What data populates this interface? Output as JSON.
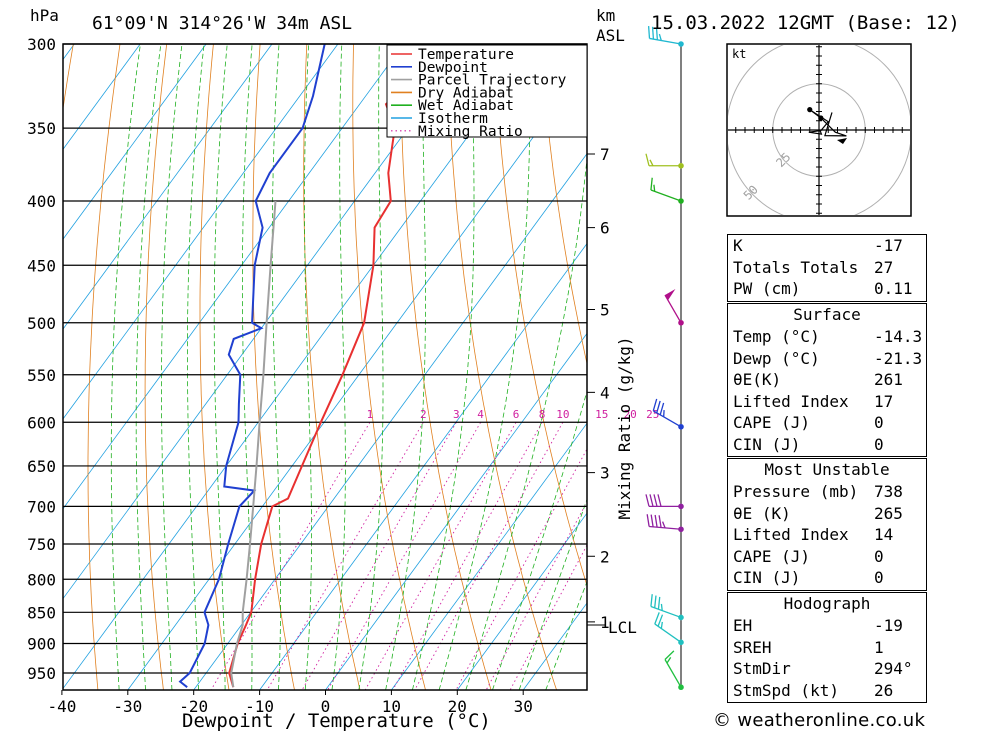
{
  "header": {
    "hpa_unit": "hPa",
    "location": "61°09'N  314°26'W  34m  ASL",
    "km_unit": "km",
    "asl_unit": "ASL",
    "date": "15.03.2022  12GMT  (Base: 12)"
  },
  "footer": "© weatheronline.co.uk",
  "hodograph": {
    "unit": "kt",
    "rings": [
      "25",
      "50",
      "75"
    ]
  },
  "stats": {
    "basic": [
      {
        "label": "K",
        "value": "-17"
      },
      {
        "label": "Totals Totals",
        "value": "27"
      },
      {
        "label": "PW (cm)",
        "value": "0.11"
      }
    ],
    "surface": {
      "title": "Surface",
      "rows": [
        {
          "label": "Temp (°C)",
          "value": "-14.3"
        },
        {
          "label": "Dewp (°C)",
          "value": "-21.3"
        },
        {
          "label": "θE(K)",
          "value": "261"
        },
        {
          "label": "Lifted Index",
          "value": "17"
        },
        {
          "label": "CAPE (J)",
          "value": "0"
        },
        {
          "label": "CIN (J)",
          "value": "0"
        }
      ]
    },
    "most_unstable": {
      "title": "Most Unstable",
      "rows": [
        {
          "label": "Pressure (mb)",
          "value": "738"
        },
        {
          "label": "θE (K)",
          "value": "265"
        },
        {
          "label": "Lifted Index",
          "value": "14"
        },
        {
          "label": "CAPE (J)",
          "value": "0"
        },
        {
          "label": "CIN (J)",
          "value": "0"
        }
      ]
    },
    "hodograph": {
      "title": "Hodograph",
      "rows": [
        {
          "label": "EH",
          "value": "-19"
        },
        {
          "label": "SREH",
          "value": "1"
        },
        {
          "label": "StmDir",
          "value": "294°"
        },
        {
          "label": "StmSpd (kt)",
          "value": "26"
        }
      ]
    }
  },
  "colors": {
    "temperature": "#e83030",
    "dewpoint": "#2040d0",
    "parcel": "#a0a0a0",
    "dry_adiabat": "#e08020",
    "wet_adiabat": "#20b020",
    "isotherm": "#20a0e0",
    "mixing_ratio": "#d020a0"
  },
  "chart_data": {
    "type": "line",
    "xlabel": "Dewpoint / Temperature (°C)",
    "ylabel": "hPa",
    "right_label": "Mixing Ratio (g/kg)",
    "xlim": [
      -40,
      40
    ],
    "ylim": [
      980,
      300
    ],
    "x_ticks": [
      "-40",
      "-30",
      "-20",
      "-10",
      "0",
      "10",
      "20",
      "30"
    ],
    "pressure_ticks": [
      300,
      350,
      400,
      450,
      500,
      550,
      600,
      650,
      700,
      750,
      800,
      850,
      900,
      950
    ],
    "km_ticks": [
      {
        "label": "7",
        "p": 367
      },
      {
        "label": "6",
        "p": 420
      },
      {
        "label": "5",
        "p": 488
      },
      {
        "label": "4",
        "p": 568
      },
      {
        "label": "3",
        "p": 658
      },
      {
        "label": "2",
        "p": 767
      },
      {
        "label": "1",
        "p": 865
      }
    ],
    "lcl_label": "LCL",
    "lcl_p": 870,
    "mixing_ratio_labels": [
      "1",
      "2",
      "3",
      "4",
      "6",
      "8",
      "10",
      "15",
      "20",
      "25"
    ],
    "mixing_ratio_values": [
      1,
      2,
      3,
      4,
      6,
      8,
      10,
      15,
      20,
      25
    ],
    "legend": [
      {
        "name": "Temperature",
        "key": "temperature",
        "style": "solid"
      },
      {
        "name": "Dewpoint",
        "key": "dewpoint",
        "style": "solid"
      },
      {
        "name": "Parcel Trajectory",
        "key": "parcel",
        "style": "solid"
      },
      {
        "name": "Dry Adiabat",
        "key": "dry_adiabat",
        "style": "solid"
      },
      {
        "name": "Wet Adiabat",
        "key": "wet_adiabat",
        "style": "solid"
      },
      {
        "name": "Isotherm",
        "key": "isotherm",
        "style": "solid"
      },
      {
        "name": "Mixing Ratio",
        "key": "mixing_ratio",
        "style": "dotted"
      }
    ],
    "series": [
      {
        "name": "Temperature",
        "points": [
          [
            975,
            -14.3
          ],
          [
            950,
            -16.5
          ],
          [
            900,
            -18.5
          ],
          [
            870,
            -19.3
          ],
          [
            850,
            -19.9
          ],
          [
            800,
            -23.0
          ],
          [
            750,
            -26.0
          ],
          [
            700,
            -28.5
          ],
          [
            690,
            -27.0
          ],
          [
            650,
            -28.5
          ],
          [
            600,
            -30.5
          ],
          [
            550,
            -32.5
          ],
          [
            500,
            -35.0
          ],
          [
            450,
            -40.0
          ],
          [
            420,
            -44.0
          ],
          [
            400,
            -44.5
          ],
          [
            380,
            -48.0
          ],
          [
            350,
            -52.0
          ],
          [
            335,
            -56.0
          ],
          [
            300,
            -53.0
          ]
        ]
      },
      {
        "name": "Dewpoint",
        "points": [
          [
            975,
            -21.3
          ],
          [
            965,
            -23.0
          ],
          [
            950,
            -22.5
          ],
          [
            900,
            -23.5
          ],
          [
            870,
            -25.0
          ],
          [
            850,
            -27.0
          ],
          [
            800,
            -28.5
          ],
          [
            750,
            -31.0
          ],
          [
            700,
            -33.5
          ],
          [
            680,
            -33.0
          ],
          [
            675,
            -38.0
          ],
          [
            650,
            -40.0
          ],
          [
            600,
            -43.0
          ],
          [
            580,
            -45.0
          ],
          [
            550,
            -48.0
          ],
          [
            530,
            -52.0
          ],
          [
            515,
            -53.0
          ],
          [
            505,
            -50.0
          ],
          [
            500,
            -52.0
          ],
          [
            450,
            -58.0
          ],
          [
            420,
            -61.0
          ],
          [
            400,
            -65.0
          ],
          [
            380,
            -66.0
          ],
          [
            350,
            -66.0
          ],
          [
            330,
            -68.0
          ],
          [
            300,
            -72.0
          ]
        ]
      },
      {
        "name": "Parcel Trajectory",
        "points": [
          [
            975,
            -14.3
          ],
          [
            950,
            -16.2
          ],
          [
            900,
            -18.6
          ],
          [
            870,
            -19.8
          ],
          [
            850,
            -21.2
          ],
          [
            800,
            -24.3
          ],
          [
            750,
            -27.7
          ],
          [
            700,
            -31.4
          ],
          [
            650,
            -35.4
          ],
          [
            600,
            -39.8
          ],
          [
            550,
            -44.5
          ],
          [
            500,
            -49.8
          ],
          [
            450,
            -55.6
          ],
          [
            400,
            -62.0
          ]
        ]
      }
    ],
    "wind_barbs": [
      {
        "p": 300,
        "dir": 280,
        "speed": 35,
        "color": "#20b8d0"
      },
      {
        "p": 375,
        "dir": 270,
        "speed": 15,
        "color": "#a0c020"
      },
      {
        "p": 400,
        "dir": 290,
        "speed": 15,
        "color": "#20b020"
      },
      {
        "p": 500,
        "dir": 330,
        "speed": 50,
        "color": "#b0108a"
      },
      {
        "p": 605,
        "dir": 300,
        "speed": 35,
        "color": "#2040d0"
      },
      {
        "p": 700,
        "dir": 270,
        "speed": 40,
        "color": "#9020a0"
      },
      {
        "p": 730,
        "dir": 275,
        "speed": 45,
        "color": "#9020a0"
      },
      {
        "p": 858,
        "dir": 290,
        "speed": 35,
        "color": "#20c0c0"
      },
      {
        "p": 898,
        "dir": 305,
        "speed": 25,
        "color": "#20c0c0"
      },
      {
        "p": 975,
        "dir": 330,
        "speed": 15,
        "color": "#20c040"
      }
    ],
    "hodograph_points": [
      [
        0.5,
        0.0
      ],
      [
        1.3,
        -2.2
      ],
      [
        -5.5,
        -1.2
      ],
      [
        1.0,
        -0.3
      ],
      [
        5.0,
        4.5
      ],
      [
        -5.0,
        11.0
      ],
      [
        1.0,
        6.5
      ],
      [
        8.8,
        -1.2
      ],
      [
        14.8,
        -3.2
      ],
      [
        3.2,
        -3.0
      ],
      [
        7.0,
        9.5
      ]
    ]
  }
}
